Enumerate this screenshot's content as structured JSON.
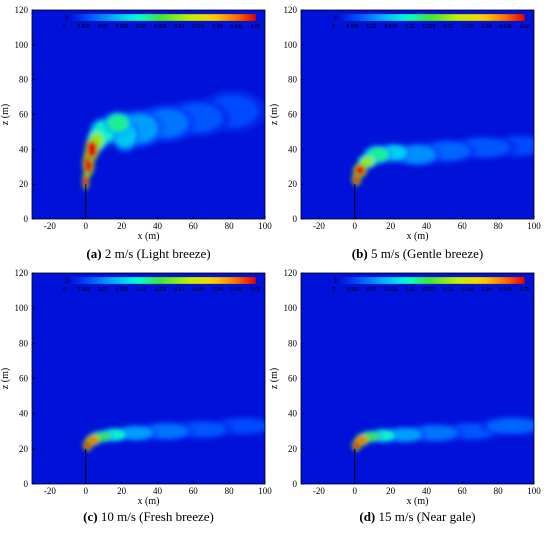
{
  "chart_data": [
    {
      "type": "heatmap",
      "caption_letter": "(a)",
      "caption_text": " 2 m/s (Light breeze)",
      "xlabel": "x (m)",
      "ylabel": "z (m)",
      "xlim": [
        -30,
        100
      ],
      "ylim": [
        0,
        120
      ],
      "xticks": [
        -20,
        0,
        20,
        40,
        60,
        80,
        100
      ],
      "yticks": [
        0,
        20,
        40,
        60,
        80,
        100,
        120
      ],
      "colorbar": {
        "min": 0,
        "max": 0.05,
        "ticks": [
          "0",
          "0.005",
          "0.01",
          "0.015",
          "0.02",
          "0.025",
          "0.03",
          "0.035",
          "0.04",
          "0.045",
          "0.05"
        ]
      },
      "stack": {
        "x": 0,
        "z_top": 20
      },
      "plume": [
        {
          "x": 0,
          "z": 22,
          "rx": 1.5,
          "rz": 4,
          "v": 0.05
        },
        {
          "x": 1.5,
          "z": 32,
          "rx": 2.5,
          "rz": 6,
          "v": 0.05
        },
        {
          "x": 3.5,
          "z": 40,
          "rx": 3,
          "rz": 5,
          "v": 0.05
        },
        {
          "x": 6,
          "z": 45,
          "rx": 4,
          "rz": 5,
          "v": 0.03
        },
        {
          "x": 10,
          "z": 50,
          "rx": 6,
          "rz": 6,
          "v": 0.02
        },
        {
          "x": 18,
          "z": 55,
          "rx": 6,
          "rz": 5,
          "v": 0.022
        },
        {
          "x": 22,
          "z": 48,
          "rx": 6,
          "rz": 7,
          "v": 0.015
        },
        {
          "x": 30,
          "z": 52,
          "rx": 10,
          "rz": 8,
          "v": 0.012
        },
        {
          "x": 45,
          "z": 55,
          "rx": 12,
          "rz": 8,
          "v": 0.009
        },
        {
          "x": 62,
          "z": 58,
          "rx": 14,
          "rz": 8,
          "v": 0.007
        },
        {
          "x": 82,
          "z": 62,
          "rx": 14,
          "rz": 9,
          "v": 0.006
        }
      ]
    },
    {
      "type": "heatmap",
      "caption_letter": "(b)",
      "caption_text": " 5 m/s (Gentle breeze)",
      "xlabel": "x (m)",
      "ylabel": "z (m)",
      "xlim": [
        -30,
        100
      ],
      "ylim": [
        0,
        120
      ],
      "xticks": [
        -20,
        0,
        20,
        40,
        60,
        80,
        100
      ],
      "yticks": [
        0,
        20,
        40,
        60,
        80,
        100,
        120
      ],
      "colorbar": {
        "min": 0,
        "max": 0.05,
        "ticks": [
          "0",
          "0.005",
          "0.01",
          "0.015",
          "0.02",
          "0.025",
          "0.03",
          "0.035",
          "0.04",
          "0.045",
          "0.05"
        ]
      },
      "stack": {
        "x": 0,
        "z_top": 20
      },
      "plume": [
        {
          "x": 1,
          "z": 23,
          "rx": 2,
          "rz": 3,
          "v": 0.05
        },
        {
          "x": 3,
          "z": 28,
          "rx": 3,
          "rz": 3,
          "v": 0.05
        },
        {
          "x": 7,
          "z": 33,
          "rx": 4,
          "rz": 3,
          "v": 0.03
        },
        {
          "x": 13,
          "z": 37,
          "rx": 6,
          "rz": 4,
          "v": 0.022
        },
        {
          "x": 22,
          "z": 38,
          "rx": 7,
          "rz": 4,
          "v": 0.016
        },
        {
          "x": 35,
          "z": 37,
          "rx": 10,
          "rz": 5,
          "v": 0.011
        },
        {
          "x": 52,
          "z": 39,
          "rx": 12,
          "rz": 5,
          "v": 0.008
        },
        {
          "x": 72,
          "z": 41,
          "rx": 14,
          "rz": 5,
          "v": 0.007
        },
        {
          "x": 92,
          "z": 42,
          "rx": 12,
          "rz": 5,
          "v": 0.006
        }
      ]
    },
    {
      "type": "heatmap",
      "caption_letter": "(c)",
      "caption_text": " 10 m/s (Fresh breeze)",
      "xlabel": "x (m)",
      "ylabel": "z (m)",
      "xlim": [
        -30,
        100
      ],
      "ylim": [
        0,
        120
      ],
      "xticks": [
        -20,
        0,
        20,
        40,
        60,
        80,
        100
      ],
      "yticks": [
        0,
        20,
        40,
        60,
        80,
        100,
        120
      ],
      "colorbar": {
        "min": 0,
        "max": 0.05,
        "ticks": [
          "0",
          "0.005",
          "0.01",
          "0.015",
          "0.02",
          "0.025",
          "0.03",
          "0.035",
          "0.04",
          "0.045",
          "0.05"
        ]
      },
      "stack": {
        "x": 0,
        "z_top": 20
      },
      "plume": [
        {
          "x": 1,
          "z": 22,
          "rx": 2,
          "rz": 2.5,
          "v": 0.05
        },
        {
          "x": 4,
          "z": 25,
          "rx": 3,
          "rz": 2.5,
          "v": 0.045
        },
        {
          "x": 9,
          "z": 27,
          "rx": 5,
          "rz": 2.5,
          "v": 0.025
        },
        {
          "x": 16,
          "z": 28,
          "rx": 6,
          "rz": 3,
          "v": 0.02
        },
        {
          "x": 28,
          "z": 29,
          "rx": 9,
          "rz": 3.5,
          "v": 0.012
        },
        {
          "x": 45,
          "z": 30,
          "rx": 12,
          "rz": 4,
          "v": 0.009
        },
        {
          "x": 65,
          "z": 31,
          "rx": 13,
          "rz": 4,
          "v": 0.007
        },
        {
          "x": 88,
          "z": 33,
          "rx": 14,
          "rz": 4,
          "v": 0.006
        }
      ]
    },
    {
      "type": "heatmap",
      "caption_letter": "(d)",
      "caption_text": " 15 m/s (Near gale)",
      "xlabel": "x (m)",
      "ylabel": "z (m)",
      "xlim": [
        -30,
        100
      ],
      "ylim": [
        0,
        120
      ],
      "xticks": [
        -20,
        0,
        20,
        40,
        60,
        80,
        100
      ],
      "yticks": [
        0,
        20,
        40,
        60,
        80,
        100,
        120
      ],
      "colorbar": {
        "min": 0,
        "max": 0.05,
        "ticks": [
          "0",
          "0.005",
          "0.01",
          "0.015",
          "0.02",
          "0.025",
          "0.03",
          "0.035",
          "0.04",
          "0.045",
          "0.05"
        ]
      },
      "stack": {
        "x": 0,
        "z_top": 20
      },
      "plume": [
        {
          "x": 1,
          "z": 22,
          "rx": 2,
          "rz": 2.5,
          "v": 0.05
        },
        {
          "x": 4,
          "z": 25,
          "rx": 3,
          "rz": 2.5,
          "v": 0.045
        },
        {
          "x": 9,
          "z": 27,
          "rx": 5,
          "rz": 2.5,
          "v": 0.025
        },
        {
          "x": 16,
          "z": 27.5,
          "rx": 6,
          "rz": 3,
          "v": 0.02
        },
        {
          "x": 28,
          "z": 28,
          "rx": 9,
          "rz": 3.5,
          "v": 0.012
        },
        {
          "x": 45,
          "z": 29,
          "rx": 12,
          "rz": 4,
          "v": 0.009
        },
        {
          "x": 65,
          "z": 30,
          "rx": 13,
          "rz": 4,
          "v": 0.007
        },
        {
          "x": 88,
          "z": 33,
          "rx": 14,
          "rz": 4,
          "v": 0.008
        }
      ]
    }
  ]
}
